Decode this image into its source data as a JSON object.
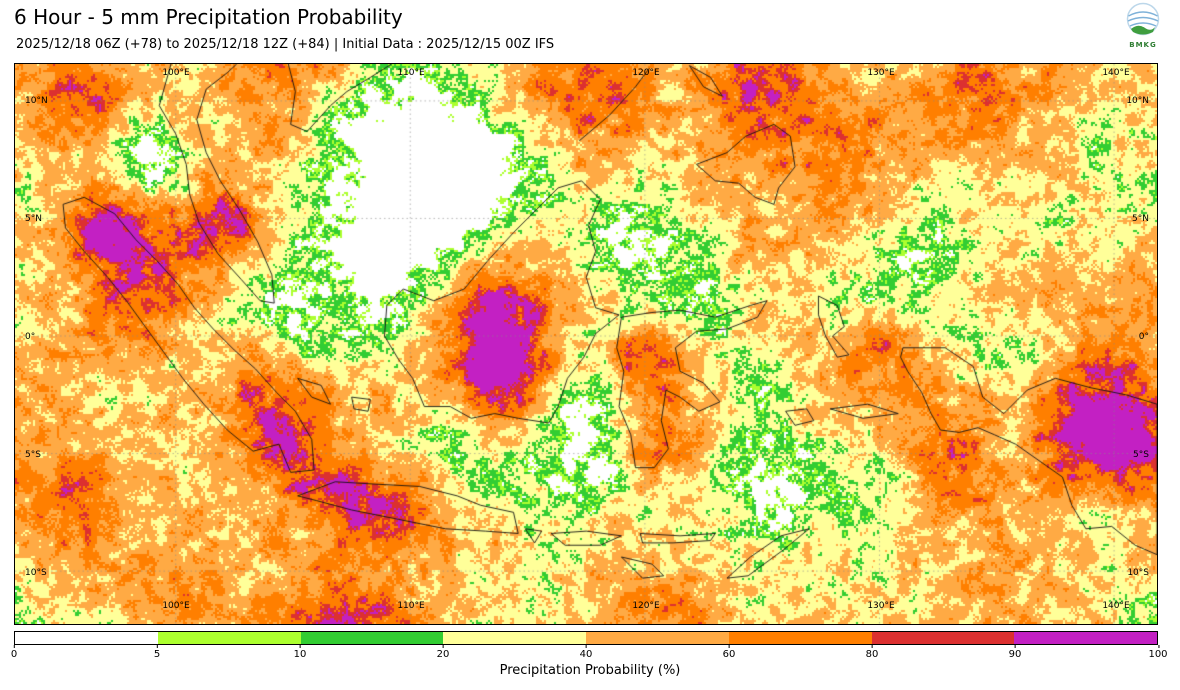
{
  "header": {
    "title": "6 Hour - 5 mm Precipitation Probability",
    "subtitle": "2025/12/18 06Z (+78) to 2025/12/18 12Z (+84) | Initial Data : 2025/12/15 00Z IFS",
    "logo_label": "BMKG"
  },
  "map": {
    "lat_labels": [
      "10°N",
      "5°N",
      "0°",
      "5°S",
      "10°S"
    ],
    "lon_labels": [
      "100°E",
      "110°E",
      "120°E",
      "130°E",
      "140°E"
    ]
  },
  "colorbar": {
    "label": "Precipitation Probability (%)",
    "ticks": [
      "0",
      "5",
      "10",
      "20",
      "40",
      "60",
      "80",
      "90",
      "100"
    ],
    "colors": [
      "#ffffff",
      "#adff2f",
      "#32cd32",
      "#ffff99",
      "#ffaa44",
      "#ff7f00",
      "#dc3030",
      "#c320c3"
    ],
    "thresholds_percent": [
      0,
      5,
      10,
      20,
      40,
      60,
      80,
      90,
      100
    ]
  }
}
